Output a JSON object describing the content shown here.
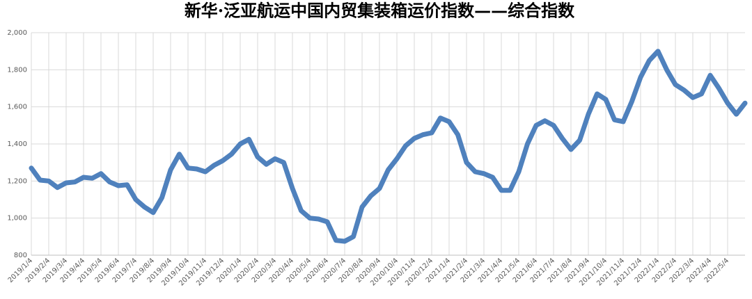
{
  "chart_data": {
    "type": "line",
    "title": "新华·泛亚航运中国内贸集装箱运价指数——综合指数",
    "categories": [
      "2019/1/4",
      null,
      "2019/2/4",
      null,
      "2019/3/4",
      null,
      "2019/4/4",
      null,
      "2019/5/4",
      null,
      "2019/6/4",
      null,
      "2019/7/4",
      null,
      "2019/8/4",
      null,
      "2019/9/4",
      null,
      "2019/10/4",
      null,
      "2019/11/4",
      null,
      "2019/12/4",
      null,
      "2020/1/4",
      null,
      "2020/2/4",
      null,
      "2020/3/4",
      null,
      "2020/4/4",
      null,
      "2020/5/4",
      null,
      "2020/6/4",
      null,
      "2020/7/4",
      null,
      "2020/8/4",
      null,
      "2020/9/4",
      null,
      "2020/10/4",
      null,
      "2020/11/4",
      null,
      "2020/12/4",
      null,
      "2021/1/4",
      null,
      "2021/2/4",
      null,
      "2021/3/4",
      null,
      "2021/4/4",
      null,
      "2021/5/4",
      null,
      "2021/6/4",
      null,
      "2021/7/4",
      null,
      "2021/8/4",
      null,
      "2021/9/4",
      null,
      "2021/10/4",
      null,
      "2021/11/4",
      null,
      "2021/12/4",
      null,
      "2022/1/4",
      null,
      "2022/2/4",
      null,
      "2022/3/4",
      null,
      "2022/4/4",
      null,
      "2022/5/4",
      null,
      null
    ],
    "series": [
      {
        "color": "#4f81bd",
        "values": [
          1270,
          1205,
          1200,
          1165,
          1190,
          1195,
          1220,
          1215,
          1240,
          1195,
          1175,
          1180,
          1100,
          1060,
          1030,
          1110,
          1260,
          1345,
          1270,
          1265,
          1250,
          1285,
          1310,
          1345,
          1400,
          1425,
          1330,
          1290,
          1320,
          1300,
          1160,
          1040,
          1000,
          995,
          980,
          880,
          875,
          900,
          1060,
          1120,
          1160,
          1260,
          1320,
          1390,
          1430,
          1450,
          1460,
          1540,
          1520,
          1450,
          1300,
          1250,
          1240,
          1220,
          1150,
          1150,
          1250,
          1400,
          1500,
          1525,
          1500,
          1430,
          1370,
          1420,
          1560,
          1670,
          1640,
          1530,
          1520,
          1630,
          1760,
          1850,
          1900,
          1800,
          1720,
          1690,
          1650,
          1670,
          1770,
          1700,
          1620,
          1560,
          1620
        ]
      }
    ],
    "ylim": [
      800,
      2000
    ],
    "yticks": [
      {
        "value": 800,
        "label": "800"
      },
      {
        "value": 1000,
        "label": "1,000"
      },
      {
        "value": 1200,
        "label": "1,200"
      },
      {
        "value": 1400,
        "label": "1,400"
      },
      {
        "value": 1600,
        "label": "1,600"
      },
      {
        "value": 1800,
        "label": "1,800"
      },
      {
        "value": 2000,
        "label": "2,000"
      }
    ],
    "grid": true
  }
}
